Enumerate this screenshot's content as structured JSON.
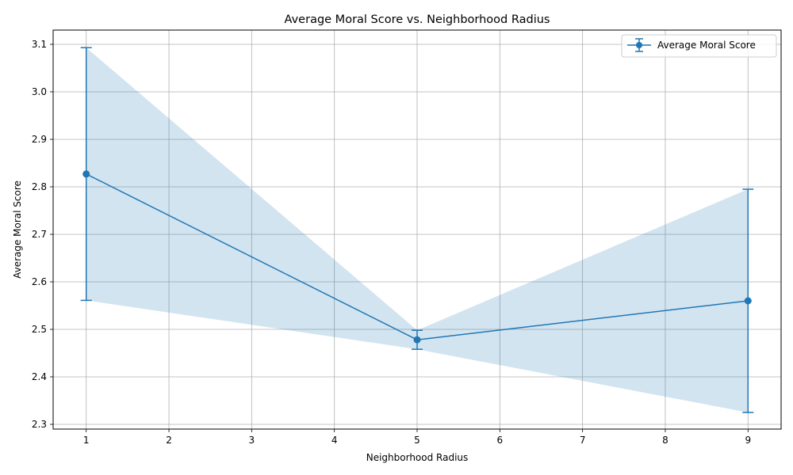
{
  "chart_data": {
    "type": "line",
    "title": "Average Moral Score vs. Neighborhood Radius",
    "xlabel": "Neighborhood Radius",
    "ylabel": "Average Moral Score",
    "xlim": [
      0.6,
      9.4
    ],
    "ylim": [
      2.29,
      3.13
    ],
    "x_ticks": [
      1,
      2,
      3,
      4,
      5,
      6,
      7,
      8,
      9
    ],
    "y_ticks": [
      2.3,
      2.4,
      2.5,
      2.6,
      2.7,
      2.8,
      2.9,
      3.0,
      3.1
    ],
    "grid": true,
    "legend_position": "top-right",
    "series": [
      {
        "name": "Average Moral Score",
        "x": [
          1,
          5,
          9
        ],
        "y": [
          2.827,
          2.478,
          2.56
        ],
        "error": [
          0.266,
          0.02,
          0.235
        ],
        "color": "#1f77b4",
        "band_color": "#1f77b4",
        "band_opacity": 0.2
      }
    ]
  }
}
